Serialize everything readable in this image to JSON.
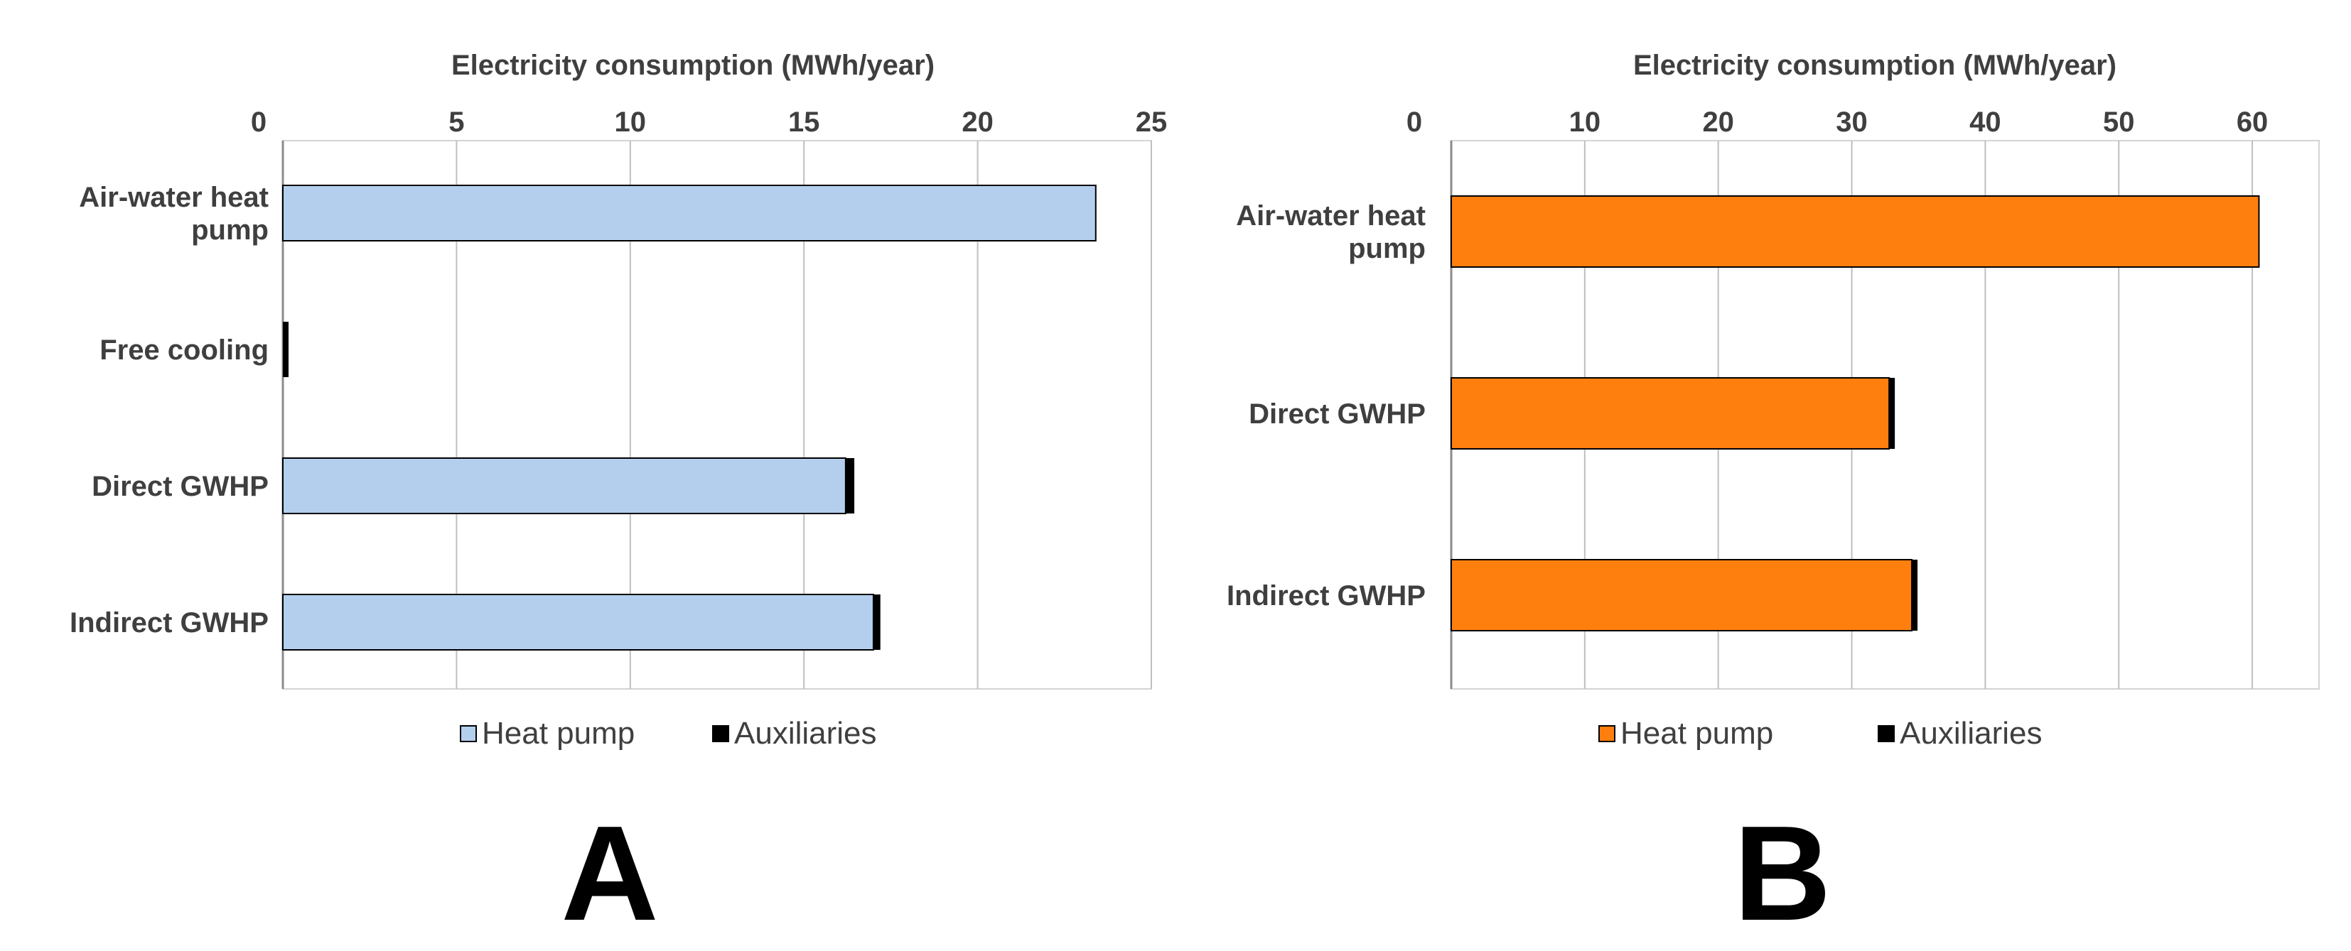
{
  "chart_data": [
    {
      "type": "bar",
      "orientation": "horizontal",
      "stacked": true,
      "panel_label": "A",
      "title": "Electricity consumption (MWh/year)",
      "xlabel": "Electricity consumption (MWh/year)",
      "xlim": [
        0,
        25
      ],
      "x_ticks": [
        "0",
        "5",
        "10",
        "15",
        "20",
        "25"
      ],
      "x_tick_values": [
        0,
        5,
        10,
        15,
        20,
        25
      ],
      "categories": [
        [
          "Air-water heat",
          "pump"
        ],
        [
          "Free cooling"
        ],
        [
          "Direct GWHP"
        ],
        [
          "Indirect GWHP"
        ]
      ],
      "series": [
        {
          "name": "Heat pump",
          "color": "#b4cfee",
          "values": [
            23.4,
            0,
            16.2,
            17.0
          ]
        },
        {
          "name": "Auxiliaries",
          "color": "#000000",
          "values": [
            0.0,
            0.15,
            0.25,
            0.2
          ]
        }
      ],
      "legend": [
        "Heat pump",
        "Auxiliaries"
      ],
      "legend_position": "bottom",
      "grid": true
    },
    {
      "type": "bar",
      "orientation": "horizontal",
      "stacked": true,
      "panel_label": "B",
      "title": "Electricity consumption (MWh/year)",
      "xlabel": "Electricity consumption (MWh/year)",
      "xlim": [
        0,
        65
      ],
      "x_ticks": [
        "0",
        "10",
        "20",
        "30",
        "40",
        "50",
        "60"
      ],
      "x_tick_values": [
        0,
        10,
        20,
        30,
        40,
        50,
        60
      ],
      "categories": [
        [
          "Air-water heat",
          "pump"
        ],
        [
          "Direct GWHP"
        ],
        [
          "Indirect GWHP"
        ]
      ],
      "series": [
        {
          "name": "Heat pump",
          "color": "#ff7f0e",
          "values": [
            60.5,
            32.8,
            34.5
          ]
        },
        {
          "name": "Auxiliaries",
          "color": "#000000",
          "values": [
            0.0,
            0.4,
            0.3
          ]
        }
      ],
      "legend": [
        "Heat pump",
        "Auxiliaries"
      ],
      "legend_position": "bottom",
      "grid": true
    }
  ]
}
